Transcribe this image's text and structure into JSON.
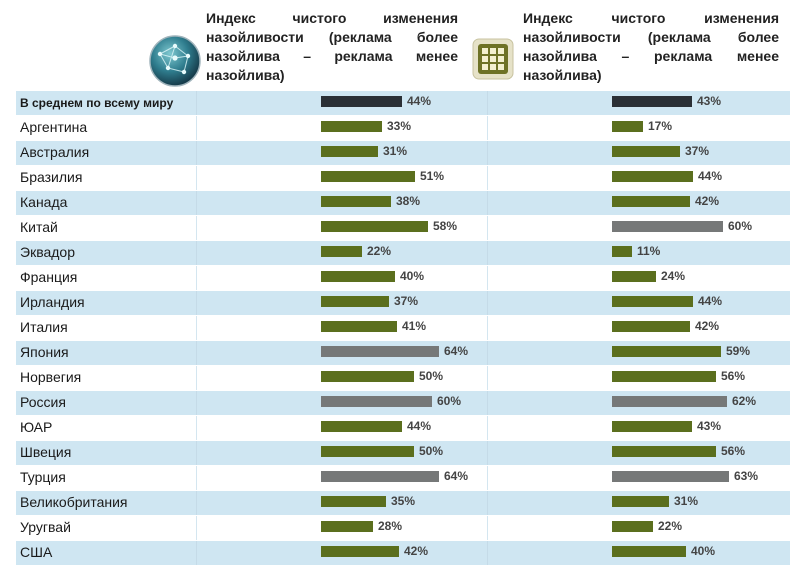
{
  "chart_data": {
    "type": "bar",
    "title_left": "Индекс чистого изменения назойливости (реклама более назойлива – реклама менее назойлива)",
    "title_right": "Индекс чистого изменения назойливости (реклама более назойлива – реклама менее назойлива)",
    "icon_left": "globe-network-icon",
    "icon_right": "grid-window-icon",
    "categories": [
      "В среднем по всему миру",
      "Аргентина",
      "Австралия",
      "Бразилия",
      "Канада",
      "Китай",
      "Эквадор",
      "Франция",
      "Ирландия",
      "Италия",
      "Япония",
      "Норвегия",
      "Россия",
      "ЮАР",
      "Швеция",
      "Турция",
      "Великобритания",
      "Уругвай",
      "США"
    ],
    "series": [
      {
        "name": "left",
        "values": [
          44,
          33,
          31,
          51,
          38,
          58,
          22,
          40,
          37,
          41,
          64,
          50,
          60,
          44,
          50,
          64,
          35,
          28,
          42
        ],
        "labels": [
          "44%",
          "33%",
          "31%",
          "51%",
          "38%",
          "58%",
          "22%",
          "40%",
          "37%",
          "41%",
          "64%",
          "50%",
          "60%",
          "44%",
          "50%",
          "64%",
          "35%",
          "28%",
          "42%"
        ],
        "bar_style": [
          "avg",
          "green",
          "green",
          "green",
          "green",
          "green",
          "green",
          "green",
          "green",
          "green",
          "gray",
          "green",
          "gray",
          "green",
          "green",
          "gray",
          "green",
          "green",
          "green"
        ]
      },
      {
        "name": "right",
        "values": [
          43,
          17,
          37,
          44,
          42,
          60,
          11,
          24,
          44,
          42,
          59,
          56,
          62,
          43,
          56,
          63,
          31,
          22,
          40
        ],
        "labels": [
          "43%",
          "17%",
          "37%",
          "44%",
          "42%",
          "60%",
          "11%",
          "24%",
          "44%",
          "42%",
          "59%",
          "56%",
          "62%",
          "43%",
          "56%",
          "63%",
          "31%",
          "22%",
          "40%"
        ],
        "bar_style": [
          "avg",
          "green",
          "green",
          "green",
          "green",
          "gray",
          "green",
          "green",
          "green",
          "green",
          "green",
          "green",
          "gray",
          "green",
          "green",
          "gray",
          "green",
          "green",
          "green"
        ]
      }
    ],
    "colors": {
      "avg": "#2b3036",
      "green": "#5b6f1e",
      "gray": "#767878",
      "row_alt": "#cfe6f2"
    }
  }
}
